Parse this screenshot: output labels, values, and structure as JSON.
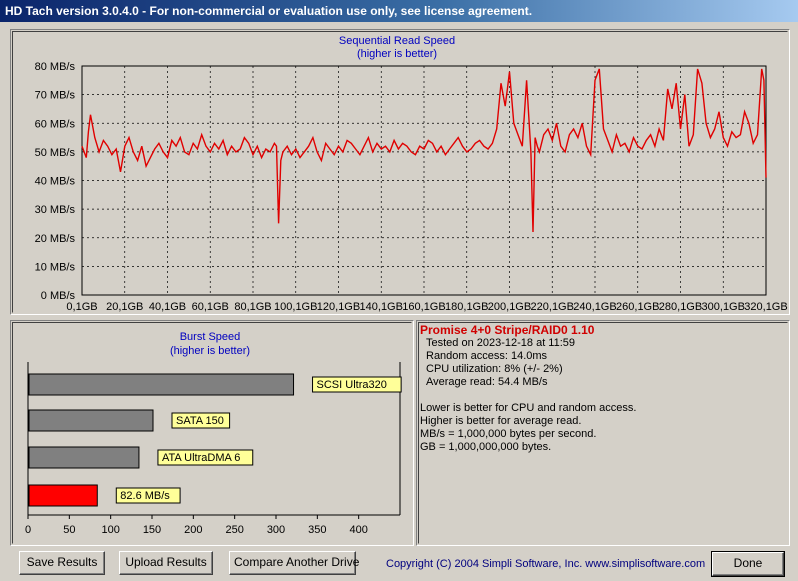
{
  "window": {
    "title": "HD Tach version 3.0.4.0  - For non-commercial or evaluation use only, see license agreement."
  },
  "colors": {
    "accent": "#e00000",
    "series": "#e00000",
    "title_blue": "#0000c0"
  },
  "read_chart": {
    "title": "Sequential Read Speed",
    "subtitle": "(higher is better)"
  },
  "burst_chart": {
    "title": "Burst Speed",
    "subtitle": "(higher is better)"
  },
  "chart_data": [
    {
      "type": "line",
      "title": "Sequential Read Speed",
      "subtitle": "(higher is better)",
      "xlabel": "",
      "ylabel": "",
      "y_unit": "MB/s",
      "ylim": [
        0,
        80
      ],
      "xlim": [
        0.1,
        320.1
      ],
      "grid": true,
      "y_ticks": [
        "0 MB/s",
        "10 MB/s",
        "20 MB/s",
        "30 MB/s",
        "40 MB/s",
        "50 MB/s",
        "60 MB/s",
        "70 MB/s",
        "80 MB/s"
      ],
      "x_ticks": [
        "0,1GB",
        "20,1GB",
        "40,1GB",
        "60,1GB",
        "80,1GB",
        "100,1GB",
        "120,1GB",
        "140,1GB",
        "160,1GB",
        "180,1GB",
        "200,1GB",
        "220,1GB",
        "240,1GB",
        "260,1GB",
        "280,1GB",
        "300,1GB",
        "320,1GB"
      ],
      "series": [
        {
          "x": [
            0,
            2,
            3,
            4,
            6,
            8,
            10,
            12,
            14,
            16,
            18,
            20,
            22,
            24,
            26,
            28,
            30,
            32,
            34,
            36,
            38,
            40,
            42,
            44,
            46,
            48,
            50,
            52,
            54,
            56,
            58,
            60,
            62,
            64,
            66,
            68,
            70,
            72,
            74,
            76,
            78,
            80,
            82,
            84,
            86,
            88,
            90,
            91,
            92,
            93,
            94,
            96,
            98,
            100,
            102,
            104,
            106,
            108,
            110,
            112,
            114,
            116,
            118,
            120,
            122,
            124,
            126,
            128,
            130,
            132,
            134,
            136,
            138,
            140,
            142,
            144,
            146,
            148,
            150,
            152,
            154,
            156,
            158,
            160,
            162,
            164,
            166,
            168,
            170,
            172,
            174,
            176,
            178,
            180,
            182,
            184,
            186,
            188,
            190,
            192,
            194,
            196,
            198,
            199,
            200,
            202,
            204,
            206,
            208,
            210,
            211,
            212,
            213,
            214,
            216,
            218,
            220,
            222,
            224,
            226,
            228,
            230,
            232,
            234,
            236,
            238,
            240,
            242,
            244,
            246,
            248,
            250,
            252,
            254,
            256,
            258,
            260,
            262,
            264,
            266,
            268,
            270,
            272,
            274,
            276,
            278,
            280,
            282,
            284,
            286,
            288,
            290,
            292,
            294,
            296,
            298,
            300,
            302,
            304,
            306,
            308,
            310,
            312,
            314,
            316,
            318,
            319,
            320
          ],
          "y": [
            52,
            48,
            57,
            63,
            55,
            50,
            54,
            52,
            49,
            51,
            43,
            52,
            55,
            50,
            47,
            52,
            45,
            48,
            51,
            53,
            50,
            48,
            54,
            52,
            55,
            50,
            49,
            53,
            51,
            56,
            52,
            50,
            53,
            51,
            54,
            49,
            52,
            50,
            51,
            55,
            53,
            49,
            52,
            48,
            51,
            50,
            53,
            52,
            25,
            47,
            50,
            52,
            49,
            51,
            48,
            50,
            52,
            55,
            50,
            47,
            53,
            51,
            49,
            52,
            50,
            54,
            53,
            51,
            49,
            52,
            55,
            50,
            53,
            51,
            52,
            50,
            54,
            51,
            53,
            52,
            50,
            49,
            52,
            51,
            54,
            53,
            50,
            52,
            49,
            51,
            53,
            55,
            52,
            50,
            51,
            53,
            54,
            52,
            51,
            53,
            58,
            74,
            66,
            72,
            78,
            60,
            56,
            52,
            75,
            50,
            22,
            55,
            52,
            50,
            56,
            58,
            54,
            60,
            52,
            50,
            56,
            58,
            55,
            60,
            52,
            49,
            75,
            79,
            58,
            54,
            50,
            56,
            52,
            53,
            50,
            55,
            52,
            51,
            54,
            56,
            52,
            58,
            54,
            72,
            65,
            74,
            58,
            70,
            52,
            56,
            79,
            74,
            60,
            55,
            58,
            64,
            55,
            52,
            57,
            55,
            56,
            64,
            60,
            53,
            56,
            79,
            75,
            41
          ]
        }
      ]
    },
    {
      "type": "bar",
      "title": "Burst Speed",
      "subtitle": "(higher is better)",
      "xlim": [
        0,
        450
      ],
      "x_ticks": [
        "0",
        "50",
        "100",
        "150",
        "200",
        "250",
        "300",
        "350",
        "400"
      ],
      "orientation": "horizontal",
      "categories": [
        "SCSI Ultra320",
        "SATA 150",
        "ATA UltraDMA 6",
        "82.6 MB/s"
      ],
      "values": [
        320,
        150,
        133,
        82.6
      ],
      "bar_colors": [
        "#808080",
        "#808080",
        "#808080",
        "#ff0000"
      ]
    }
  ],
  "results": {
    "drive_name": "Promise 4+0 Stripe/RAID0 1.10",
    "tested_on": "Tested on 2023-12-18 at 11:59",
    "random_access": "Random access: 14.0ms",
    "cpu_utilization": "CPU utilization: 8% (+/- 2%)",
    "average_read": "Average read: 54.4 MB/s",
    "note1": "Lower is better for CPU and random access.",
    "note2": "Higher is better for average read.",
    "note3": "MB/s = 1,000,000 bytes per second.",
    "note4": "GB = 1,000,000,000 bytes."
  },
  "buttons": {
    "save": "Save Results",
    "upload": "Upload Results",
    "compare": "Compare Another Drive",
    "done": "Done"
  },
  "copyright": "Copyright (C) 2004 Simpli Software, Inc. www.simplisoftware.com"
}
